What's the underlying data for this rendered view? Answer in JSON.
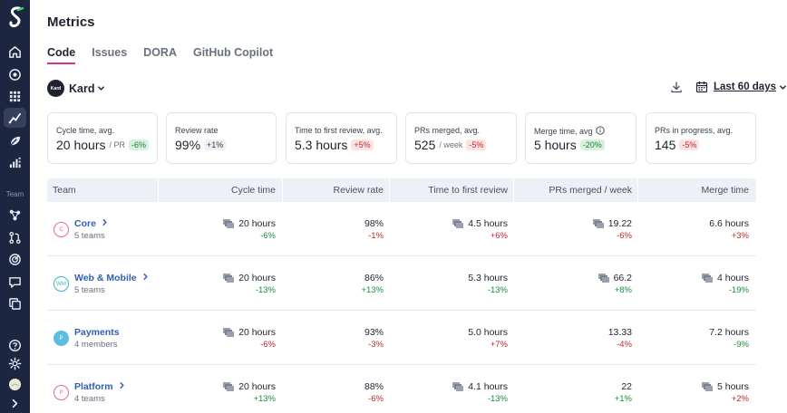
{
  "app": {
    "title": "Metrics",
    "tabs": [
      {
        "label": "Code",
        "active": true
      },
      {
        "label": "Issues",
        "active": false
      },
      {
        "label": "DORA",
        "active": false
      },
      {
        "label": "GitHub Copilot",
        "active": false
      }
    ]
  },
  "sidebar": {
    "section_label": "Team",
    "items": [
      {
        "icon": "home-icon"
      },
      {
        "icon": "target-icon"
      },
      {
        "icon": "grid-icon"
      },
      {
        "icon": "chart-line-icon",
        "active": true
      },
      {
        "icon": "leaf-icon"
      },
      {
        "icon": "bar-chart-icon"
      },
      {
        "icon": "network-icon"
      },
      {
        "icon": "git-pull-request-icon"
      },
      {
        "icon": "radar-icon"
      },
      {
        "icon": "chat-icon"
      },
      {
        "icon": "copy-icon"
      },
      {
        "icon": "help-icon"
      },
      {
        "icon": "settings-icon"
      },
      {
        "icon": "avatar-icon"
      },
      {
        "icon": "chevron-right-icon"
      }
    ]
  },
  "org": {
    "name": "Kard",
    "logo_text": "Kard"
  },
  "toolbar": {
    "date_range": "Last 60 days"
  },
  "cards": [
    {
      "label": "Cycle time, avg.",
      "value": "20 hours",
      "unit": "/ PR",
      "delta": "-6%",
      "delta_type": "pos"
    },
    {
      "label": "Review rate",
      "value": "99%",
      "unit": "",
      "delta": "+1%",
      "delta_type": "neu"
    },
    {
      "label": "Time to first review, avg.",
      "value": "5.3 hours",
      "unit": "",
      "delta": "+5%",
      "delta_type": "neg"
    },
    {
      "label": "PRs merged, avg.",
      "value": "525",
      "unit": "/ week",
      "delta": "-5%",
      "delta_type": "neg"
    },
    {
      "label": "Merge time, avg",
      "value": "5 hours",
      "unit": "",
      "delta": "-20%",
      "delta_type": "pos",
      "info": true
    },
    {
      "label": "PRs in progress, avg.",
      "value": "145",
      "unit": "",
      "delta": "-5%",
      "delta_type": "neg"
    }
  ],
  "table": {
    "headers": [
      "Team",
      "Cycle time",
      "Review rate",
      "Time to first review",
      "PRs merged / week",
      "Merge time"
    ],
    "rows": [
      {
        "badge": "C",
        "badge_color": "#e86a8a",
        "badge_fill": "#ffffff",
        "name": "Core",
        "sub": "5 teams",
        "has_chevron": true,
        "cycle": {
          "value": "20 hours",
          "delta": "-6%",
          "type": "pos",
          "icon": true
        },
        "review": {
          "value": "98%",
          "delta": "-1%",
          "type": "neg",
          "icon": false
        },
        "first": {
          "value": "4.5 hours",
          "delta": "+6%",
          "type": "neg",
          "icon": true
        },
        "merged": {
          "value": "19.22",
          "delta": "-6%",
          "type": "neg",
          "icon": true
        },
        "merge": {
          "value": "6.6 hours",
          "delta": "+3%",
          "type": "neg",
          "icon": false
        }
      },
      {
        "badge": "WM",
        "badge_color": "#3fb1c7",
        "badge_fill": "#ffffff",
        "name": "Web & Mobile",
        "sub": "5 teams",
        "has_chevron": true,
        "cycle": {
          "value": "20 hours",
          "delta": "-13%",
          "type": "pos",
          "icon": true
        },
        "review": {
          "value": "86%",
          "delta": "+13%",
          "type": "pos",
          "icon": false
        },
        "first": {
          "value": "5.3 hours",
          "delta": "-13%",
          "type": "pos",
          "icon": false
        },
        "merged": {
          "value": "66.2",
          "delta": "+8%",
          "type": "pos",
          "icon": true
        },
        "merge": {
          "value": "4 hours",
          "delta": "-19%",
          "type": "pos",
          "icon": true
        }
      },
      {
        "badge": "P",
        "badge_color": "#5bbde0",
        "badge_fill": "#5bbde0",
        "name": "Payments",
        "sub": "4 members",
        "has_chevron": false,
        "cycle": {
          "value": "20 hours",
          "delta": "-6%",
          "type": "neg",
          "icon": true
        },
        "review": {
          "value": "93%",
          "delta": "-3%",
          "type": "neg",
          "icon": false
        },
        "first": {
          "value": "5.0 hours",
          "delta": "+7%",
          "type": "neg",
          "icon": false
        },
        "merged": {
          "value": "13.33",
          "delta": "-4%",
          "type": "neg",
          "icon": false
        },
        "merge": {
          "value": "7.2 hours",
          "delta": "-9%",
          "type": "pos",
          "icon": false
        }
      },
      {
        "badge": "P",
        "badge_color": "#e86a8a",
        "badge_fill": "#ffffff",
        "name": "Platform",
        "sub": "4 teams",
        "has_chevron": true,
        "cycle": {
          "value": "20 hours",
          "delta": "+13%",
          "type": "pos",
          "icon": true
        },
        "review": {
          "value": "88%",
          "delta": "-6%",
          "type": "neg",
          "icon": false
        },
        "first": {
          "value": "4.1 hours",
          "delta": "-13%",
          "type": "pos",
          "icon": true
        },
        "merged": {
          "value": "22",
          "delta": "+1%",
          "type": "pos",
          "icon": false
        },
        "merge": {
          "value": "5 hours",
          "delta": "+2%",
          "type": "neg",
          "icon": true
        }
      }
    ]
  }
}
